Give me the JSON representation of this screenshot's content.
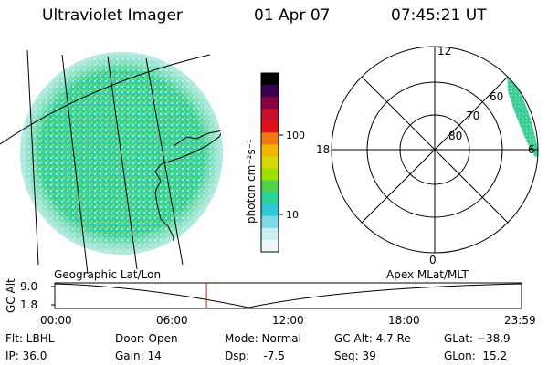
{
  "header": {
    "title": "Ultraviolet Imager",
    "date": "01 Apr 07",
    "time": "07:45:21 UT"
  },
  "panels": {
    "left_caption": "Geographic Lat/Lon",
    "right_caption": "Apex MLat/MLT"
  },
  "colorbar": {
    "unit_label": "photon cm⁻²s⁻¹",
    "ticks": [
      "100",
      "10"
    ],
    "colors": [
      "#000000",
      "#3a0050",
      "#8a0040",
      "#c8102e",
      "#e0101e",
      "#f07a10",
      "#f3b400",
      "#d8d800",
      "#9ee000",
      "#4dd24a",
      "#2ad29a",
      "#2ec8d8",
      "#7fd8e6",
      "#c8eef3",
      "#eef8fa"
    ]
  },
  "polar": {
    "mlt_labels": {
      "top": "12",
      "bottom": "0",
      "left": "18",
      "right": "6"
    },
    "lat_labels": [
      "60",
      "70",
      "80"
    ]
  },
  "altitude_plot": {
    "ylabel": "GC Alt",
    "yticks": [
      "9.0",
      "1.8"
    ],
    "xticks": [
      "00:00",
      "06:00",
      "12:00",
      "18:00",
      "23:59"
    ],
    "marker_fraction": 0.325
  },
  "info": {
    "col1": [
      "Flt: LBHL",
      "IP: 36.0"
    ],
    "col2": [
      "Door: Open",
      "Gain: 14"
    ],
    "col3": [
      "Mode: Normal",
      "Dsp:    -7.5"
    ],
    "col4": [
      "GC Alt: 4.7 Re",
      "Seq: 39"
    ],
    "col5": [
      "GLat: −38.9",
      "GLon:  15.2"
    ]
  },
  "palette": {
    "disk_main": "#3cd28c",
    "disk_secondary": "#2ac8c8",
    "disk_light": "#a8e4ee",
    "marker": "#e01010"
  }
}
